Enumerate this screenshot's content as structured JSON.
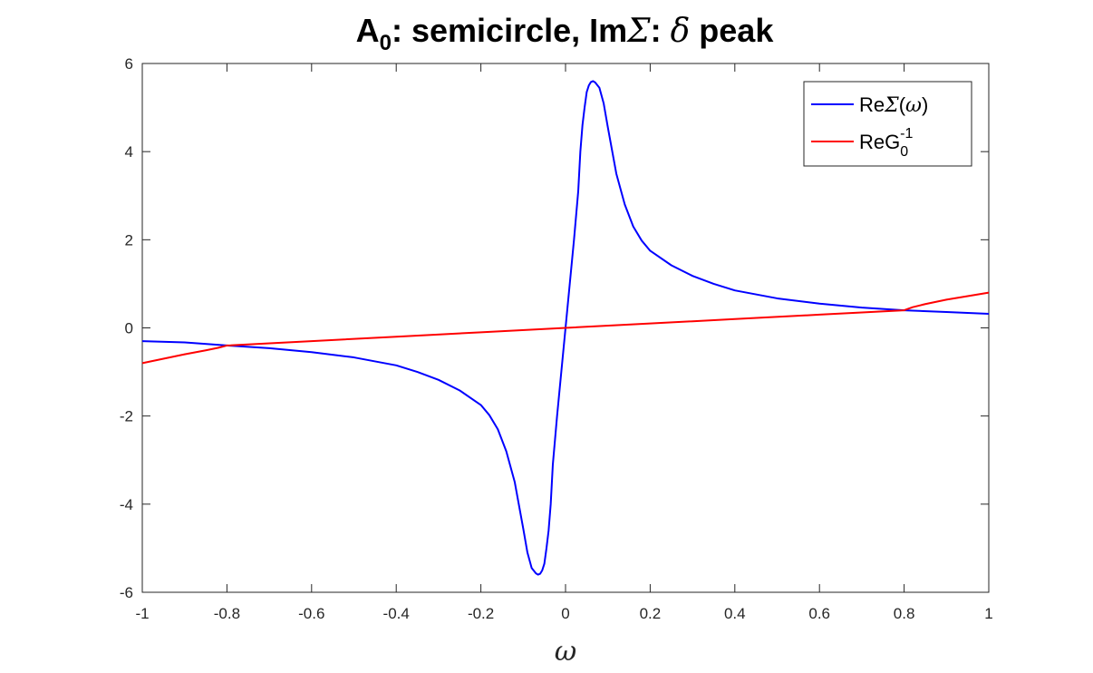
{
  "chart_data": {
    "type": "line",
    "title": {
      "a_base": "A",
      "a_sub": "0",
      "mid": ": semicircle, Im",
      "sigma": "Σ",
      "colon": ": ",
      "delta": "δ",
      "tail": " peak"
    },
    "xlabel": "ω",
    "ylabel": "",
    "xlim": [
      -1,
      1
    ],
    "ylim": [
      -6,
      6
    ],
    "xticks": [
      -1,
      -0.8,
      -0.6,
      -0.4,
      -0.2,
      0,
      0.2,
      0.4,
      0.6,
      0.8,
      1
    ],
    "xtick_labels": [
      "-1",
      "-0.8",
      "-0.6",
      "-0.4",
      "-0.2",
      "0",
      "0.2",
      "0.4",
      "0.6",
      "0.8",
      "1"
    ],
    "yticks": [
      -6,
      -4,
      -2,
      0,
      2,
      4,
      6
    ],
    "ytick_labels": [
      "-6",
      "-4",
      "-2",
      "0",
      "2",
      "4",
      "6"
    ],
    "grid": false,
    "legend": {
      "placement": "top-right",
      "entries": [
        {
          "text_before": "Re",
          "sigma": "Σ",
          "paren_open": "(",
          "omega": "ω",
          "paren_close": ")"
        },
        {
          "text_before": "ReG",
          "sub": "0",
          "sup": "-1"
        }
      ]
    },
    "series": [
      {
        "name": "ReΣ(ω)",
        "color": "#0000ff",
        "x": [
          -1,
          -0.9,
          -0.8,
          -0.7,
          -0.6,
          -0.5,
          -0.4,
          -0.35,
          -0.3,
          -0.25,
          -0.2,
          -0.18,
          -0.16,
          -0.14,
          -0.12,
          -0.1,
          -0.09,
          -0.08,
          -0.07,
          -0.065,
          -0.06,
          -0.055,
          -0.05,
          -0.045,
          -0.04,
          -0.035,
          -0.03,
          -0.02,
          -0.01,
          0,
          0.01,
          0.02,
          0.03,
          0.035,
          0.04,
          0.045,
          0.05,
          0.055,
          0.06,
          0.065,
          0.07,
          0.08,
          0.09,
          0.1,
          0.12,
          0.14,
          0.16,
          0.18,
          0.2,
          0.25,
          0.3,
          0.35,
          0.4,
          0.5,
          0.6,
          0.7,
          0.8,
          0.9,
          1
        ],
        "y": [
          -0.3,
          -0.33,
          -0.4,
          -0.46,
          -0.55,
          -0.67,
          -0.85,
          -1.0,
          -1.18,
          -1.42,
          -1.75,
          -1.98,
          -2.3,
          -2.8,
          -3.5,
          -4.55,
          -5.1,
          -5.45,
          -5.57,
          -5.6,
          -5.58,
          -5.5,
          -5.35,
          -5.0,
          -4.6,
          -4.0,
          -3.1,
          -2.0,
          -1.0,
          0.0,
          1.0,
          2.0,
          3.1,
          4.0,
          4.6,
          5.0,
          5.35,
          5.5,
          5.58,
          5.6,
          5.57,
          5.45,
          5.1,
          4.55,
          3.5,
          2.8,
          2.3,
          1.98,
          1.75,
          1.42,
          1.18,
          1.0,
          0.85,
          0.67,
          0.55,
          0.46,
          0.4,
          0.36,
          0.32
        ]
      },
      {
        "name": "ReG0^-1",
        "color": "#ff0000",
        "x": [
          -1,
          -0.95,
          -0.9,
          -0.85,
          -0.82,
          -0.8,
          -0.6,
          -0.4,
          -0.2,
          0,
          0.2,
          0.4,
          0.6,
          0.8,
          0.82,
          0.85,
          0.9,
          0.95,
          1
        ],
        "y": [
          -0.8,
          -0.7,
          -0.6,
          -0.51,
          -0.45,
          -0.4,
          -0.3,
          -0.2,
          -0.1,
          0,
          0.1,
          0.2,
          0.3,
          0.4,
          0.47,
          0.54,
          0.64,
          0.72,
          0.8
        ]
      }
    ]
  }
}
